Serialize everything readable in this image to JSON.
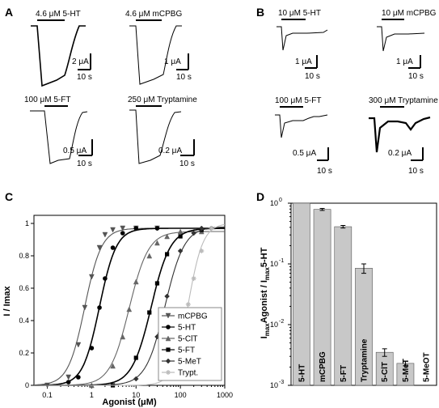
{
  "panels": {
    "A": {
      "label": "A",
      "traces": [
        {
          "stim": "4.6 μM 5-HT",
          "scale_y": "2 μA",
          "scale_x": "10 s"
        },
        {
          "stim": "4.6 μM mCPBG",
          "scale_y": "1 μA",
          "scale_x": "10 s"
        },
        {
          "stim": "100 μM 5-FT",
          "scale_y": "0.5 μA",
          "scale_x": "10 s"
        },
        {
          "stim": "250 μM Tryptamine",
          "scale_y": "0.2 μA",
          "scale_x": "10 s"
        }
      ]
    },
    "B": {
      "label": "B",
      "traces": [
        {
          "stim": "10 μM 5-HT",
          "scale_y": "1 μA",
          "scale_x": "10 s"
        },
        {
          "stim": "10 μM mCPBG",
          "scale_y": "1 μA",
          "scale_x": "10 s"
        },
        {
          "stim": "100 μM  5-FT",
          "scale_y": "0.5 μA",
          "scale_x": "10 s"
        },
        {
          "stim": "300 μM Tryptamine",
          "scale_y": "0.2 μA",
          "scale_x": "10 s"
        }
      ]
    }
  },
  "chart_data": [
    {
      "panel": "C",
      "type": "line",
      "xlabel": "Agonist  (μM)",
      "ylabel": "I / Imax",
      "xscale": "log",
      "xlim": [
        0.05,
        1000
      ],
      "ylim": [
        0,
        1.05
      ],
      "xticks": [
        "0.1",
        "1",
        "10",
        "100",
        "1000"
      ],
      "yticks": [
        "0",
        "0.2",
        "0.4",
        "0.6",
        "0.8",
        "1"
      ],
      "legend_position": "bottom-right",
      "legend": [
        "mCPBG",
        "5-HT",
        "5-ClT",
        "5-FT",
        "5-MeT",
        "Trypt."
      ],
      "series": [
        {
          "name": "mCPBG",
          "ec50": 0.7,
          "hill": 2.3,
          "max": 0.97,
          "color": "#555555",
          "marker": "triangle-down",
          "x": [
            0.1,
            0.3,
            0.5,
            0.7,
            1,
            1.5,
            2,
            3,
            5,
            10,
            30
          ],
          "y": [
            0.0,
            0.05,
            0.25,
            0.48,
            0.67,
            0.85,
            0.93,
            0.96,
            0.97,
            0.97,
            0.97
          ]
        },
        {
          "name": "5-HT",
          "ec50": 1.5,
          "hill": 2.3,
          "max": 0.97,
          "color": "#000000",
          "marker": "circle",
          "x": [
            0.3,
            0.5,
            1,
            1.5,
            2,
            3,
            5,
            10,
            30
          ],
          "y": [
            0.02,
            0.05,
            0.23,
            0.48,
            0.66,
            0.85,
            0.94,
            0.97,
            0.97
          ]
        },
        {
          "name": "5-ClT",
          "ec50": 7,
          "hill": 2.0,
          "max": 0.95,
          "color": "#666666",
          "marker": "triangle-up",
          "x": [
            1,
            3,
            5,
            7,
            10,
            20,
            30,
            50,
            100,
            300
          ],
          "y": [
            0.0,
            0.12,
            0.3,
            0.47,
            0.64,
            0.8,
            0.88,
            0.92,
            0.95,
            0.95
          ]
        },
        {
          "name": "5-FT",
          "ec50": 22,
          "hill": 2.0,
          "max": 0.97,
          "color": "#000000",
          "marker": "square",
          "x": [
            3,
            10,
            20,
            30,
            50,
            100,
            300
          ],
          "y": [
            0.0,
            0.17,
            0.45,
            0.63,
            0.81,
            0.92,
            0.96
          ]
        },
        {
          "name": "5-MeT",
          "ec50": 45,
          "hill": 2.0,
          "max": 0.98,
          "color": "#333333",
          "marker": "diamond",
          "x": [
            10,
            30,
            50,
            100,
            200,
            300,
            500
          ],
          "y": [
            0.04,
            0.3,
            0.55,
            0.83,
            0.94,
            0.97,
            0.97
          ]
        },
        {
          "name": "Trypt.",
          "ec50": 150,
          "hill": 2.6,
          "max": 1.0,
          "color": "#bbbbbb",
          "marker": "star",
          "x": [
            50,
            100,
            150,
            200,
            300,
            500
          ],
          "y": [
            0.05,
            0.25,
            0.5,
            0.66,
            0.83,
            0.97
          ]
        }
      ]
    },
    {
      "panel": "D",
      "type": "bar",
      "ylabel": "ImaxAgonist / Imax5-HT",
      "yscale": "log",
      "ylim": [
        0.001,
        1
      ],
      "yticks": [
        "10-3",
        "10-2",
        "10-1",
        "100"
      ],
      "categories": [
        "5-HT",
        "mCPBG",
        "5-FT",
        "Tryptamine",
        "5-ClT",
        "5-MeT",
        "5-MeOT"
      ],
      "values": [
        1.0,
        0.79,
        0.41,
        0.085,
        0.0035,
        0.0023,
        0.0
      ],
      "errors": [
        0.0,
        0.03,
        0.02,
        0.015,
        0.0005,
        0.0002,
        0.0
      ]
    }
  ],
  "panel_labels": {
    "C": "C",
    "D": "D"
  }
}
